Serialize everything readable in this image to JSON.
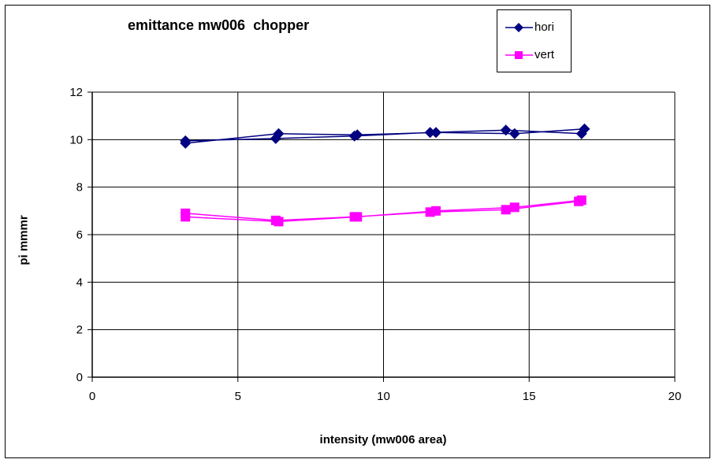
{
  "chart_data": {
    "type": "line",
    "title": "emittance mw006  chopper",
    "xlabel": "intensity (mw006 area)",
    "ylabel": "pi mmmr",
    "xlim": [
      0,
      20
    ],
    "ylim": [
      0,
      12
    ],
    "xticks": [
      0,
      5,
      10,
      15,
      20
    ],
    "yticks": [
      0,
      2,
      4,
      6,
      8,
      10,
      12
    ],
    "grid": true,
    "legend_position": "top-right",
    "series": [
      {
        "name": "hori",
        "color": "#000080",
        "marker": "diamond",
        "x": [
          3.2,
          6.4,
          9.1,
          11.8,
          14.5,
          16.9,
          16.8,
          14.2,
          11.6,
          9.0,
          6.3,
          3.2
        ],
        "y": [
          9.85,
          10.25,
          10.2,
          10.3,
          10.25,
          10.45,
          10.25,
          10.4,
          10.3,
          10.15,
          10.05,
          9.95
        ]
      },
      {
        "name": "vert",
        "color": "#FF00FF",
        "marker": "square",
        "x": [
          3.2,
          6.4,
          9.1,
          11.8,
          14.5,
          16.8,
          16.7,
          14.2,
          11.6,
          9.0,
          6.3,
          3.2
        ],
        "y": [
          6.75,
          6.55,
          6.75,
          7.0,
          7.15,
          7.45,
          7.4,
          7.05,
          6.95,
          6.75,
          6.6,
          6.9
        ]
      }
    ]
  }
}
